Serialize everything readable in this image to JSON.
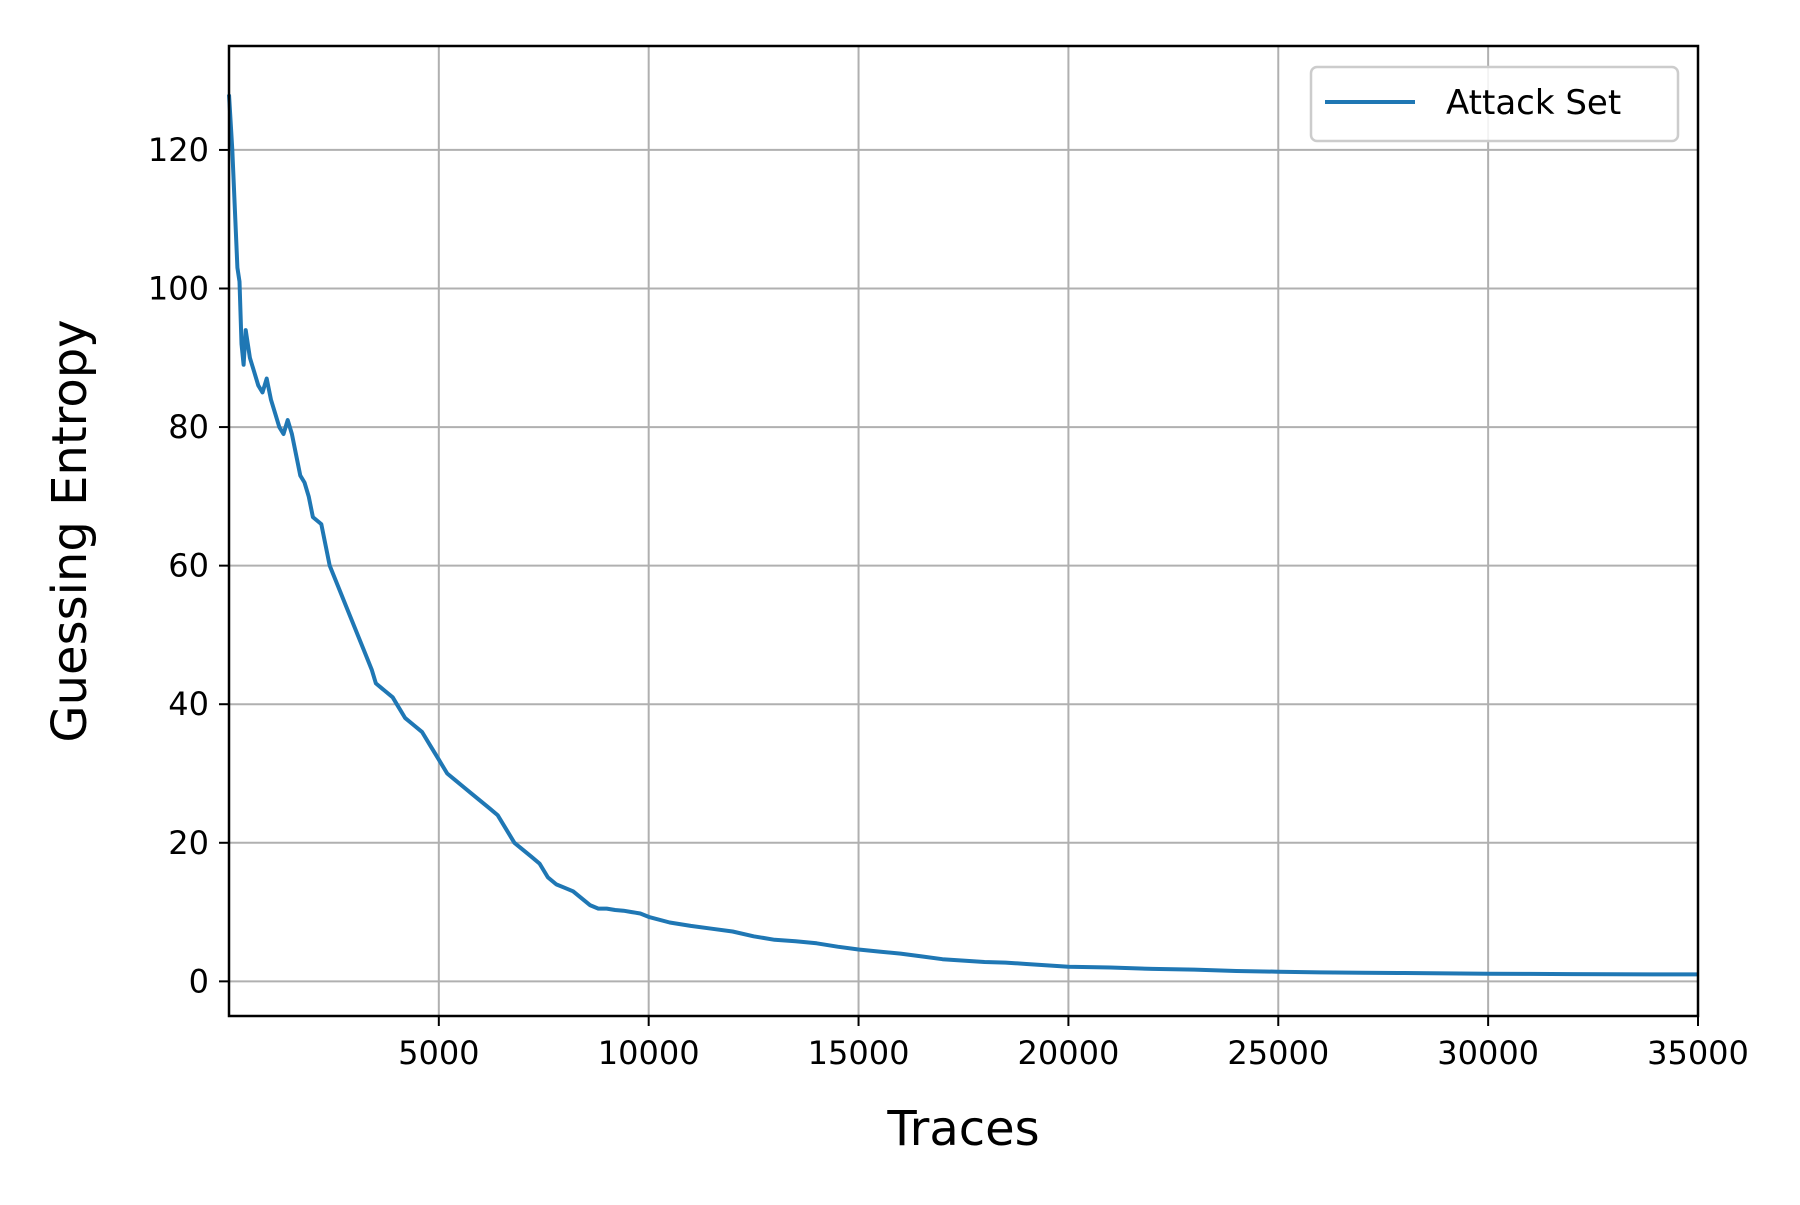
{
  "chart_data": {
    "type": "line",
    "xlabel": "Traces",
    "ylabel": "Guessing Entropy",
    "xlim": [
      1,
      35000
    ],
    "ylim": [
      -5,
      135
    ],
    "xticks": [
      5000,
      10000,
      15000,
      20000,
      25000,
      30000,
      35000
    ],
    "yticks": [
      0,
      20,
      40,
      60,
      80,
      100,
      120
    ],
    "grid": true,
    "legend_position": "top-right",
    "series": [
      {
        "name": "Attack Set",
        "color": "#1f77b4",
        "x": [
          1,
          80,
          150,
          200,
          250,
          300,
          350,
          400,
          500,
          600,
          700,
          800,
          900,
          1000,
          1100,
          1200,
          1300,
          1400,
          1500,
          1600,
          1700,
          1800,
          1900,
          2000,
          2200,
          2300,
          2400,
          2600,
          2800,
          3000,
          3200,
          3400,
          3500,
          3700,
          3900,
          4000,
          4200,
          4400,
          4600,
          4800,
          5000,
          5200,
          5400,
          5600,
          5800,
          6000,
          6200,
          6400,
          6600,
          6800,
          7000,
          7200,
          7400,
          7600,
          7800,
          8000,
          8200,
          8400,
          8600,
          8800,
          9000,
          9200,
          9400,
          9600,
          9800,
          10000,
          10500,
          11000,
          11500,
          12000,
          12500,
          13000,
          13500,
          14000,
          14500,
          15000,
          15500,
          16000,
          16500,
          17000,
          17500,
          18000,
          18500,
          19000,
          19500,
          20000,
          21000,
          22000,
          23000,
          24000,
          25000,
          26000,
          27000,
          28000,
          29000,
          30000,
          31000,
          32000,
          33000,
          34000,
          35000
        ],
        "y": [
          128,
          120,
          110,
          103,
          101,
          92,
          89,
          94,
          90,
          88,
          86,
          85,
          87,
          84,
          82,
          80,
          79,
          81,
          79,
          76,
          73,
          72,
          70,
          67,
          66,
          63,
          60,
          57,
          54,
          51,
          48,
          45,
          43,
          42,
          41,
          40,
          38,
          37,
          36,
          34,
          32,
          30,
          29,
          28,
          27,
          26,
          25,
          24,
          22,
          20,
          19,
          18,
          17,
          15,
          14,
          13.5,
          13,
          12,
          11,
          10.5,
          10.5,
          10.3,
          10.2,
          10,
          9.8,
          9.3,
          8.5,
          8,
          7.6,
          7.2,
          6.5,
          6,
          5.8,
          5.5,
          5.0,
          4.6,
          4.3,
          4.0,
          3.6,
          3.2,
          3.0,
          2.8,
          2.7,
          2.5,
          2.3,
          2.1,
          2.0,
          1.8,
          1.7,
          1.5,
          1.4,
          1.3,
          1.25,
          1.2,
          1.15,
          1.1,
          1.08,
          1.05,
          1.02,
          1.0,
          1.0
        ]
      }
    ]
  }
}
